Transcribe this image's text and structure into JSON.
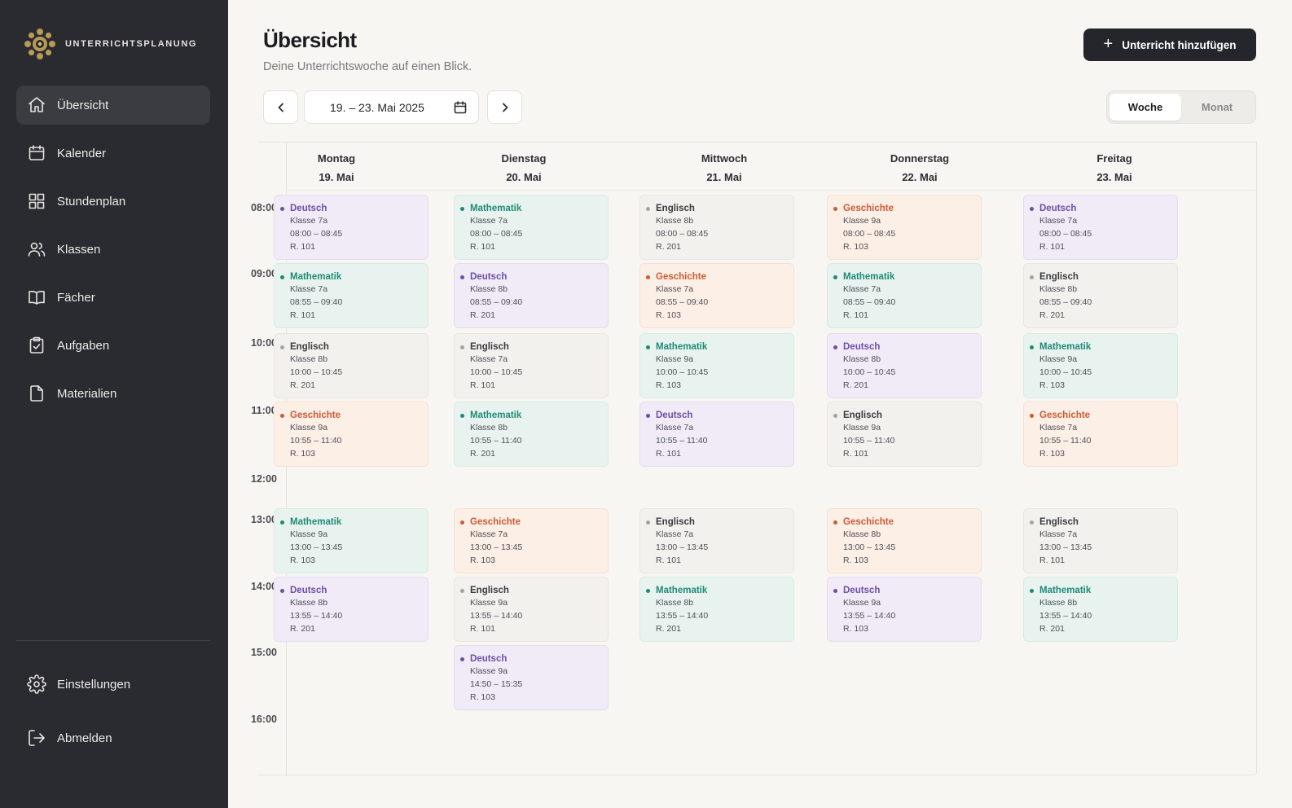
{
  "app": {
    "brand": "UNTERRICHTSPLANUNG"
  },
  "sidebar": {
    "items": [
      {
        "label": "Übersicht",
        "icon": "home-icon",
        "active": true
      },
      {
        "label": "Kalender",
        "icon": "calendar-icon"
      },
      {
        "label": "Stundenplan",
        "icon": "grid-icon"
      },
      {
        "label": "Klassen",
        "icon": "users-icon"
      },
      {
        "label": "Fächer",
        "icon": "book-icon"
      },
      {
        "label": "Aufgaben",
        "icon": "clipboard-check-icon"
      },
      {
        "label": "Materialien",
        "icon": "file-icon"
      }
    ],
    "bottom": [
      {
        "label": "Einstellungen",
        "icon": "gear-icon"
      },
      {
        "label": "Abmelden",
        "icon": "logout-icon"
      }
    ]
  },
  "header": {
    "title": "Übersicht",
    "subtitle": "Deine Unterrichtswoche auf einen Blick.",
    "add_button": "Unterricht hinzufügen"
  },
  "toolbar": {
    "date_range": "19. – 23. Mai 2025",
    "view_week": "Woche",
    "view_month": "Monat",
    "active_view": "Woche"
  },
  "colors": {
    "Deutsch": "#6d4fa6",
    "Mathematik": "#1f8a78",
    "Englisch": "#a5a4a2",
    "Geschichte": "#cf5a35"
  },
  "calendar": {
    "times": [
      "08:00",
      "09:00",
      "10:00",
      "11:00",
      "12:00",
      "13:00",
      "14:00",
      "15:00",
      "16:00"
    ],
    "days": [
      {
        "name": "Montag",
        "date": "19. Mai",
        "lessons": [
          {
            "subject": "Deutsch",
            "klasse": "Klasse 7a",
            "time": "08:00 – 08:45",
            "room": "R. 101"
          },
          {
            "subject": "Mathematik",
            "klasse": "Klasse 7a",
            "time": "08:55 – 09:40",
            "room": "R. 101"
          },
          {
            "subject": "Englisch",
            "klasse": "Klasse 8b",
            "time": "10:00 – 10:45",
            "room": "R. 201"
          },
          {
            "subject": "Geschichte",
            "klasse": "Klasse 9a",
            "time": "10:55 – 11:40",
            "room": "R. 103"
          },
          {
            "subject": "Mathematik",
            "klasse": "Klasse 9a",
            "time": "13:00 – 13:45",
            "room": "R. 103"
          },
          {
            "subject": "Deutsch",
            "klasse": "Klasse 8b",
            "time": "13:55 – 14:40",
            "room": "R. 201"
          }
        ]
      },
      {
        "name": "Dienstag",
        "date": "20. Mai",
        "lessons": [
          {
            "subject": "Mathematik",
            "klasse": "Klasse 7a",
            "time": "08:00 – 08:45",
            "room": "R. 101"
          },
          {
            "subject": "Deutsch",
            "klasse": "Klasse 8b",
            "time": "08:55 – 09:40",
            "room": "R. 201"
          },
          {
            "subject": "Englisch",
            "klasse": "Klasse 7a",
            "time": "10:00 – 10:45",
            "room": "R. 101"
          },
          {
            "subject": "Mathematik",
            "klasse": "Klasse 8b",
            "time": "10:55 – 11:40",
            "room": "R. 201"
          },
          {
            "subject": "Geschichte",
            "klasse": "Klasse 7a",
            "time": "13:00 – 13:45",
            "room": "R. 103"
          },
          {
            "subject": "Englisch",
            "klasse": "Klasse 9a",
            "time": "13:55 – 14:40",
            "room": "R. 101"
          },
          {
            "subject": "Deutsch",
            "klasse": "Klasse 9a",
            "time": "14:50 – 15:35",
            "room": "R. 103"
          }
        ]
      },
      {
        "name": "Mittwoch",
        "date": "21. Mai",
        "lessons": [
          {
            "subject": "Englisch",
            "klasse": "Klasse 8b",
            "time": "08:00 – 08:45",
            "room": "R. 201"
          },
          {
            "subject": "Geschichte",
            "klasse": "Klasse 7a",
            "time": "08:55 – 09:40",
            "room": "R. 103"
          },
          {
            "subject": "Mathematik",
            "klasse": "Klasse 9a",
            "time": "10:00 – 10:45",
            "room": "R. 103"
          },
          {
            "subject": "Deutsch",
            "klasse": "Klasse 7a",
            "time": "10:55 – 11:40",
            "room": "R. 101"
          },
          {
            "subject": "Englisch",
            "klasse": "Klasse 7a",
            "time": "13:00 – 13:45",
            "room": "R. 101"
          },
          {
            "subject": "Mathematik",
            "klasse": "Klasse 8b",
            "time": "13:55 – 14:40",
            "room": "R. 201"
          }
        ]
      },
      {
        "name": "Donnerstag",
        "date": "22. Mai",
        "lessons": [
          {
            "subject": "Geschichte",
            "klasse": "Klasse 9a",
            "time": "08:00 – 08:45",
            "room": "R. 103"
          },
          {
            "subject": "Mathematik",
            "klasse": "Klasse 7a",
            "time": "08:55 – 09:40",
            "room": "R. 101"
          },
          {
            "subject": "Deutsch",
            "klasse": "Klasse 8b",
            "time": "10:00 – 10:45",
            "room": "R. 201"
          },
          {
            "subject": "Englisch",
            "klasse": "Klasse 9a",
            "time": "10:55 – 11:40",
            "room": "R. 101"
          },
          {
            "subject": "Geschichte",
            "klasse": "Klasse 8b",
            "time": "13:00 – 13:45",
            "room": "R. 103"
          },
          {
            "subject": "Deutsch",
            "klasse": "Klasse 9a",
            "time": "13:55 – 14:40",
            "room": "R. 103"
          }
        ]
      },
      {
        "name": "Freitag",
        "date": "23. Mai",
        "lessons": [
          {
            "subject": "Deutsch",
            "klasse": "Klasse 7a",
            "time": "08:00 – 08:45",
            "room": "R. 101"
          },
          {
            "subject": "Englisch",
            "klasse": "Klasse 8b",
            "time": "08:55 – 09:40",
            "room": "R. 201"
          },
          {
            "subject": "Mathematik",
            "klasse": "Klasse 9a",
            "time": "10:00 – 10:45",
            "room": "R. 103"
          },
          {
            "subject": "Geschichte",
            "klasse": "Klasse 7a",
            "time": "10:55 – 11:40",
            "room": "R. 103"
          },
          {
            "subject": "Englisch",
            "klasse": "Klasse 7a",
            "time": "13:00 – 13:45",
            "room": "R. 101"
          },
          {
            "subject": "Mathematik",
            "klasse": "Klasse 8b",
            "time": "13:55 – 14:40",
            "room": "R. 201"
          }
        ]
      }
    ]
  }
}
